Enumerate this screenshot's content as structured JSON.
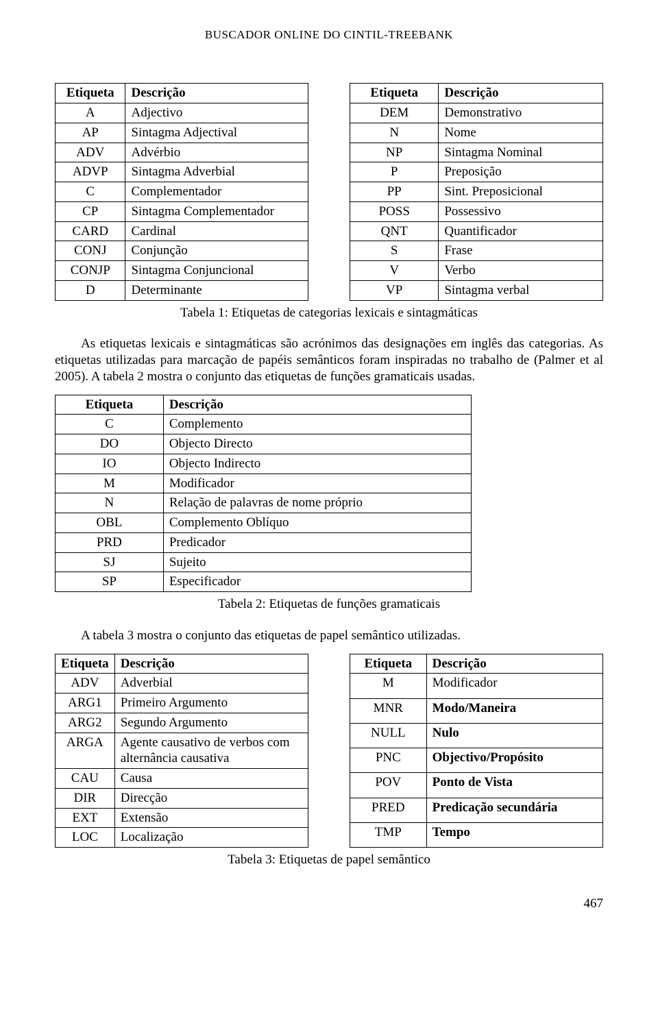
{
  "running_head": "BUSCADOR ONLINE DO CINTIL-TREEBANK",
  "table1_left": {
    "headers": [
      "Etiqueta",
      "Descrição"
    ],
    "rows": [
      [
        "A",
        "Adjectivo"
      ],
      [
        "AP",
        "Sintagma Adjectival"
      ],
      [
        "ADV",
        "Advérbio"
      ],
      [
        "ADVP",
        "Sintagma Adverbial"
      ],
      [
        "C",
        "Complementador"
      ],
      [
        "CP",
        "Sintagma Complementador"
      ],
      [
        "CARD",
        "Cardinal"
      ],
      [
        "CONJ",
        "Conjunção"
      ],
      [
        "CONJP",
        "Sintagma Conjuncional"
      ],
      [
        "D",
        "Determinante"
      ]
    ]
  },
  "table1_right": {
    "headers": [
      "Etiqueta",
      "Descrição"
    ],
    "rows": [
      [
        "DEM",
        "Demonstrativo"
      ],
      [
        "N",
        "Nome"
      ],
      [
        "NP",
        "Sintagma Nominal"
      ],
      [
        "P",
        "Preposição"
      ],
      [
        "PP",
        "Sint. Preposicional"
      ],
      [
        "POSS",
        "Possessivo"
      ],
      [
        "QNT",
        "Quantificador"
      ],
      [
        "S",
        "Frase"
      ],
      [
        "V",
        "Verbo"
      ],
      [
        "VP",
        "Sintagma verbal"
      ]
    ]
  },
  "caption1": "Tabela 1: Etiquetas de categorias lexicais e sintagmáticas",
  "para1": "As etiquetas  lexicais e sintagmáticas são acrónimos das designações em inglês das categorias. As etiquetas utilizadas para marcação de papéis semânticos foram inspiradas no trabalho de (Palmer et al 2005). A tabela 2 mostra o conjunto das etiquetas de funções gramaticais usadas.",
  "table2": {
    "headers": [
      "Etiqueta",
      "Descrição"
    ],
    "rows": [
      [
        "C",
        "Complemento"
      ],
      [
        "DO",
        "Objecto Directo"
      ],
      [
        "IO",
        "Objecto Indirecto"
      ],
      [
        "M",
        "Modificador"
      ],
      [
        "N",
        "Relação de palavras de nome próprio"
      ],
      [
        "OBL",
        "Complemento Oblíquo"
      ],
      [
        "PRD",
        "Predicador"
      ],
      [
        "SJ",
        "Sujeito"
      ],
      [
        "SP",
        "Especificador"
      ]
    ]
  },
  "caption2": "Tabela 2: Etiquetas de funções gramaticais",
  "para2": "A tabela 3 mostra o conjunto das etiquetas de papel semântico utilizadas.",
  "table3_left": {
    "headers": [
      "Etiqueta",
      "Descrição"
    ],
    "rows": [
      {
        "c0": "ADV",
        "c1": "Adverbial"
      },
      {
        "c0": "ARG1",
        "c1": "Primeiro Argumento"
      },
      {
        "c0": "ARG2",
        "c1": "Segundo Argumento"
      },
      {
        "c0": "ARGA",
        "c1": "Agente causativo de verbos com alternância causativa"
      },
      {
        "c0": "CAU",
        "c1": "Causa"
      },
      {
        "c0": "DIR",
        "c1": "Direcção"
      },
      {
        "c0": "EXT",
        "c1": "Extensão"
      },
      {
        "c0": "LOC",
        "c1": "Localização"
      }
    ]
  },
  "table3_right": {
    "headers": [
      "Etiqueta",
      "Descrição"
    ],
    "rows": [
      {
        "c0": "M",
        "c1": "Modificador",
        "bold": false
      },
      {
        "c0": "MNR",
        "c1": "Modo/Maneira",
        "bold": true
      },
      {
        "c0": "NULL",
        "c1": "Nulo",
        "bold": true
      },
      {
        "c0": "PNC",
        "c1": "Objectivo/Propósito",
        "bold": true
      },
      {
        "c0": "POV",
        "c1": "Ponto de Vista",
        "bold": true
      },
      {
        "c0": "PRED",
        "c1": "Predicação secundária",
        "bold": true
      },
      {
        "c0": "TMP",
        "c1": "Tempo",
        "bold": true
      }
    ]
  },
  "caption3": "Tabela 3: Etiquetas de papel semântico",
  "page_number": "467"
}
